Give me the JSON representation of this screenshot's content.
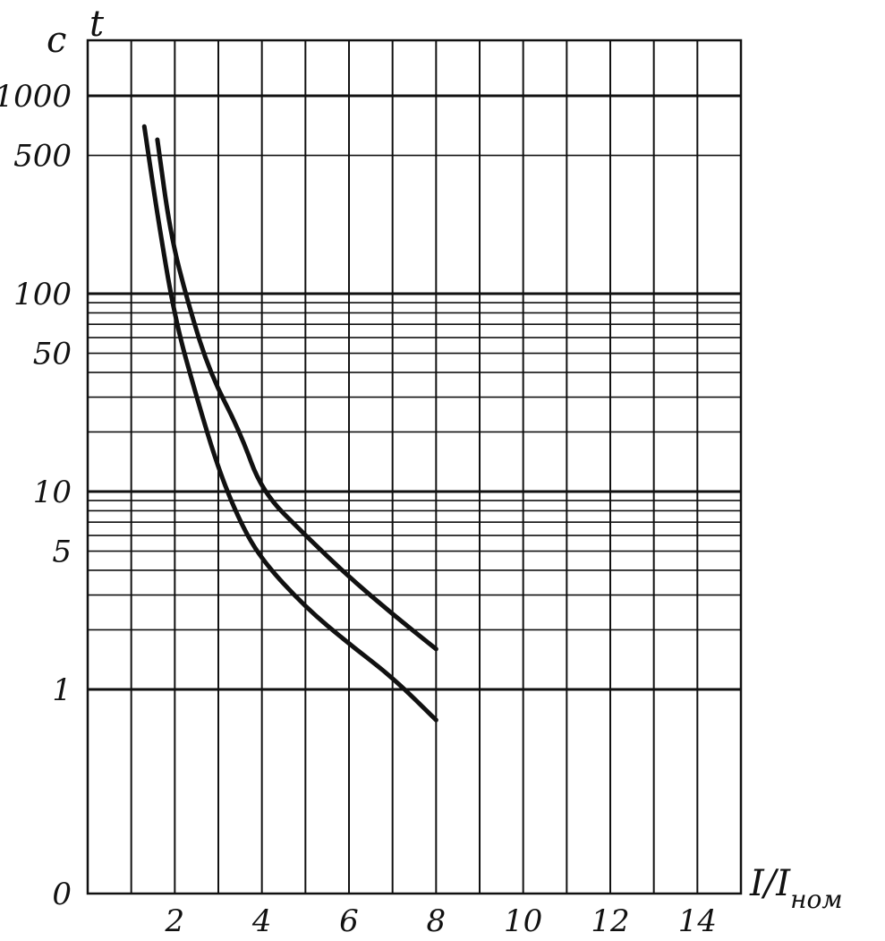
{
  "chart_data": {
    "type": "line",
    "x_axis": {
      "label_main": "I/I",
      "label_sub": "ном",
      "range": [
        0,
        15
      ],
      "ticks": [
        2,
        4,
        6,
        8,
        10,
        12,
        14
      ],
      "tick_labels": [
        "2",
        "4",
        "6",
        "8",
        "10",
        "12",
        "14"
      ],
      "grid": true
    },
    "y_axis": {
      "unit_label": "с",
      "symbol": "t",
      "scale": "mixed: 0 at bottom, logarithmic from 1 to 1000",
      "ticks": [
        0,
        1,
        5,
        10,
        50,
        100,
        500,
        1000
      ],
      "tick_labels": [
        "0",
        "1",
        "5",
        "10",
        "50",
        "100",
        "500",
        "1000"
      ],
      "grid": true
    },
    "series": [
      {
        "points": [
          [
            1.3,
            700
          ],
          [
            1.6,
            250
          ],
          [
            2.0,
            75
          ],
          [
            2.5,
            30
          ],
          [
            3.0,
            13
          ],
          [
            3.5,
            7
          ],
          [
            4.0,
            4.5
          ],
          [
            5.0,
            2.6
          ],
          [
            6.0,
            1.7
          ],
          [
            7.0,
            1.15
          ],
          [
            8.0,
            0.85
          ]
        ]
      },
      {
        "points": [
          [
            1.6,
            600
          ],
          [
            1.9,
            200
          ],
          [
            2.3,
            90
          ],
          [
            2.8,
            40
          ],
          [
            3.5,
            20
          ],
          [
            4.0,
            10
          ],
          [
            5.0,
            6
          ],
          [
            6.0,
            3.7
          ],
          [
            7.0,
            2.4
          ],
          [
            8.0,
            1.6
          ]
        ]
      }
    ],
    "legend": "none"
  }
}
